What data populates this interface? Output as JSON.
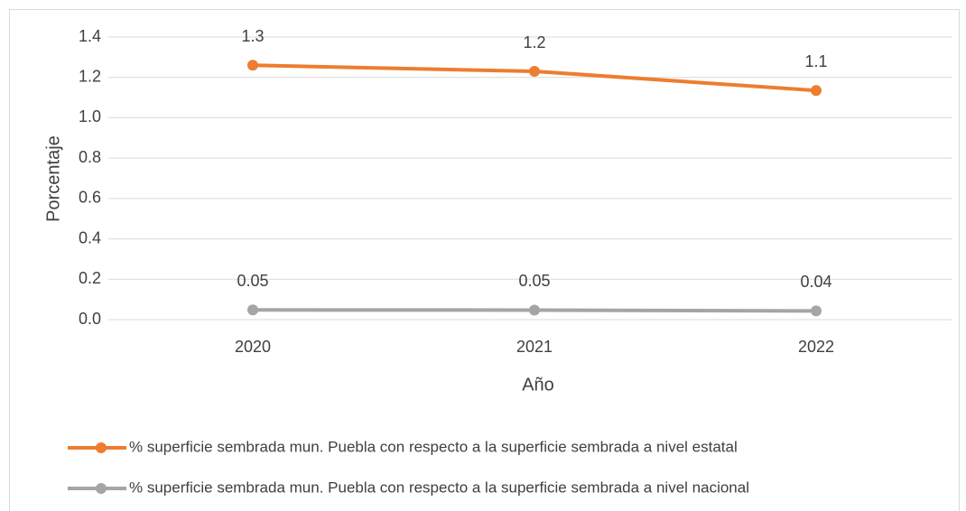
{
  "chart_data": {
    "type": "line",
    "categories": [
      "2020",
      "2021",
      "2022"
    ],
    "series": [
      {
        "name": "% superficie sembrada mun. Puebla con respecto a la superficie sembrada a nivel estatal",
        "color": "#ed7d31",
        "values": [
          1.26,
          1.23,
          1.135
        ],
        "value_labels": [
          "1.3",
          "1.2",
          "1.1"
        ]
      },
      {
        "name": "% superficie sembrada mun. Puebla con respecto a la superficie sembrada a nivel nacional",
        "color": "#a5a5a5",
        "values": [
          0.048,
          0.047,
          0.043
        ],
        "value_labels": [
          "0.05",
          "0.05",
          "0.04"
        ]
      }
    ],
    "x_label": "Año",
    "y_label": "Porcentaje",
    "ylim": [
      0,
      1.4
    ],
    "yticks": [
      {
        "value": 0,
        "label": "0.0"
      },
      0.2,
      0.4,
      0.6,
      0.8,
      {
        "value": 1,
        "label": "1.0"
      },
      1.2,
      1.4
    ],
    "grid": true,
    "legend": "bottom"
  }
}
